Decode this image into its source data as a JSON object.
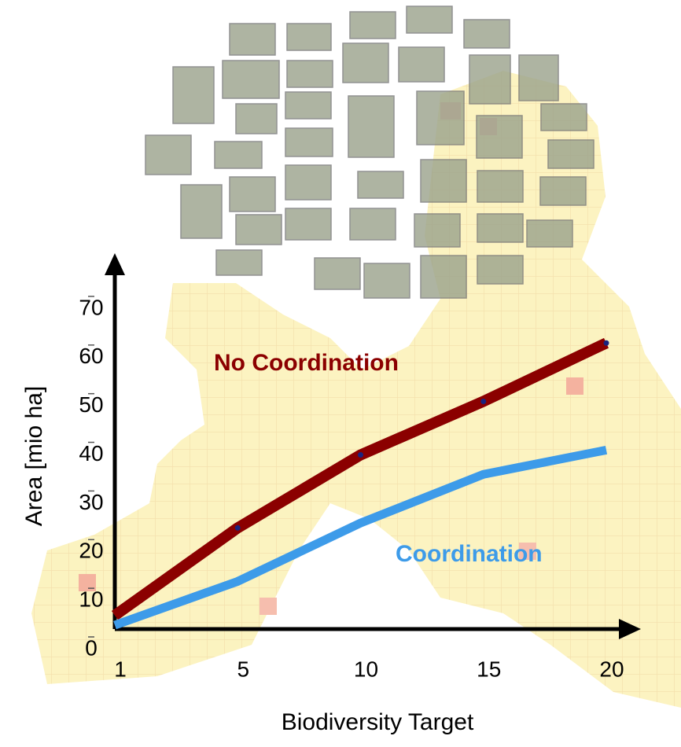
{
  "chart_data": {
    "type": "line",
    "x_label": "Biodiversity Target",
    "y_label": "Area [mio ha]",
    "categories": [
      "1",
      "5",
      "10",
      "15",
      "20"
    ],
    "ylim": [
      0,
      75
    ],
    "yticks": [
      0,
      10,
      20,
      30,
      40,
      50,
      60,
      70
    ],
    "series": [
      {
        "name": "No Coordination",
        "color": "#8b0000",
        "values": [
          7,
          25,
          40,
          51,
          63
        ],
        "markers": true
      },
      {
        "name": "Coordination",
        "color": "#3d9be9",
        "values": [
          5,
          14,
          26,
          36,
          41
        ],
        "markers": false
      }
    ]
  }
}
